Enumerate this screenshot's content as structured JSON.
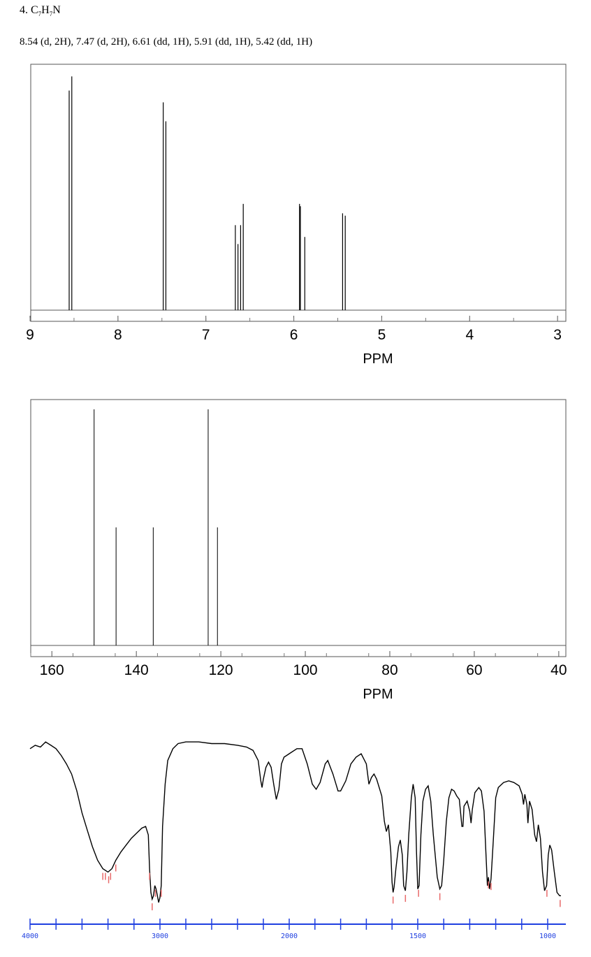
{
  "header": {
    "number": "4.",
    "formula_c": "C",
    "formula_c_sub": "7",
    "formula_h": "H",
    "formula_h_sub": "7",
    "formula_n": "N",
    "peak_list": "8.54 (d, 2H), 7.47 (d, 2H), 6.61 (dd, 1H), 5.91 (dd, 1H), 5.42 (dd, 1H)"
  },
  "chart_data": [
    {
      "type": "line",
      "name": "1H NMR",
      "xlabel": "PPM",
      "xlim": [
        9,
        2
      ],
      "x_ticks": [
        "9",
        "8",
        "7",
        "6",
        "5",
        "4",
        "3",
        "2"
      ],
      "peaks": [
        {
          "ppm": 8.555,
          "height": 0.93
        },
        {
          "ppm": 8.525,
          "height": 0.99
        },
        {
          "ppm": 7.485,
          "height": 0.88
        },
        {
          "ppm": 7.455,
          "height": 0.8
        },
        {
          "ppm": 6.665,
          "height": 0.36
        },
        {
          "ppm": 6.635,
          "height": 0.28
        },
        {
          "ppm": 6.605,
          "height": 0.36
        },
        {
          "ppm": 6.575,
          "height": 0.45
        },
        {
          "ppm": 5.935,
          "height": 0.45
        },
        {
          "ppm": 5.925,
          "height": 0.44
        },
        {
          "ppm": 5.875,
          "height": 0.31
        },
        {
          "ppm": 5.445,
          "height": 0.41
        },
        {
          "ppm": 5.415,
          "height": 0.4
        }
      ]
    },
    {
      "type": "bar",
      "name": "13C NMR",
      "xlabel": "PPM",
      "xlim": [
        165,
        37
      ],
      "x_ticks": [
        "160",
        "140",
        "120",
        "100",
        "80",
        "60",
        "40"
      ],
      "peaks": [
        {
          "ppm": 150.0,
          "height": 1.0
        },
        {
          "ppm": 144.8,
          "height": 0.5
        },
        {
          "ppm": 136.0,
          "height": 0.5
        },
        {
          "ppm": 123.0,
          "height": 1.0
        },
        {
          "ppm": 120.8,
          "height": 0.5
        }
      ]
    },
    {
      "type": "line",
      "name": "IR",
      "xlim": [
        4000,
        950
      ],
      "x_ticks": [
        "4000",
        "3000",
        "2000",
        "1500",
        "1000"
      ],
      "points": [
        [
          4000,
          0.91
        ],
        [
          3960,
          0.93
        ],
        [
          3920,
          0.92
        ],
        [
          3880,
          0.95
        ],
        [
          3840,
          0.93
        ],
        [
          3800,
          0.91
        ],
        [
          3760,
          0.87
        ],
        [
          3720,
          0.82
        ],
        [
          3680,
          0.76
        ],
        [
          3640,
          0.66
        ],
        [
          3600,
          0.53
        ],
        [
          3560,
          0.43
        ],
        [
          3520,
          0.33
        ],
        [
          3480,
          0.25
        ],
        [
          3440,
          0.2
        ],
        [
          3400,
          0.18
        ],
        [
          3370,
          0.2
        ],
        [
          3340,
          0.25
        ],
        [
          3300,
          0.3
        ],
        [
          3260,
          0.34
        ],
        [
          3220,
          0.38
        ],
        [
          3180,
          0.41
        ],
        [
          3140,
          0.44
        ],
        [
          3110,
          0.45
        ],
        [
          3090,
          0.4
        ],
        [
          3080,
          0.2
        ],
        [
          3070,
          0.06
        ],
        [
          3060,
          0.02
        ],
        [
          3050,
          0.04
        ],
        [
          3040,
          0.1
        ],
        [
          3030,
          0.08
        ],
        [
          3020,
          0.04
        ],
        [
          3010,
          0.0
        ],
        [
          3000,
          0.03
        ],
        [
          2990,
          0.1
        ],
        [
          2980,
          0.45
        ],
        [
          2960,
          0.7
        ],
        [
          2940,
          0.84
        ],
        [
          2900,
          0.91
        ],
        [
          2860,
          0.94
        ],
        [
          2800,
          0.95
        ],
        [
          2700,
          0.95
        ],
        [
          2600,
          0.94
        ],
        [
          2500,
          0.94
        ],
        [
          2400,
          0.93
        ],
        [
          2330,
          0.92
        ],
        [
          2280,
          0.9
        ],
        [
          2240,
          0.84
        ],
        [
          2220,
          0.72
        ],
        [
          2210,
          0.68
        ],
        [
          2200,
          0.73
        ],
        [
          2180,
          0.8
        ],
        [
          2160,
          0.83
        ],
        [
          2140,
          0.8
        ],
        [
          2120,
          0.7
        ],
        [
          2100,
          0.61
        ],
        [
          2080,
          0.67
        ],
        [
          2060,
          0.82
        ],
        [
          2040,
          0.86
        ],
        [
          2020,
          0.87
        ],
        [
          2000,
          0.88
        ],
        [
          1970,
          0.91
        ],
        [
          1950,
          0.91
        ],
        [
          1930,
          0.82
        ],
        [
          1910,
          0.7
        ],
        [
          1895,
          0.67
        ],
        [
          1880,
          0.71
        ],
        [
          1860,
          0.82
        ],
        [
          1850,
          0.84
        ],
        [
          1830,
          0.76
        ],
        [
          1810,
          0.66
        ],
        [
          1800,
          0.66
        ],
        [
          1780,
          0.72
        ],
        [
          1760,
          0.82
        ],
        [
          1740,
          0.86
        ],
        [
          1720,
          0.88
        ],
        [
          1700,
          0.82
        ],
        [
          1690,
          0.7
        ],
        [
          1680,
          0.74
        ],
        [
          1670,
          0.76
        ],
        [
          1660,
          0.73
        ],
        [
          1640,
          0.63
        ],
        [
          1630,
          0.48
        ],
        [
          1622,
          0.42
        ],
        [
          1614,
          0.46
        ],
        [
          1605,
          0.3
        ],
        [
          1600,
          0.12
        ],
        [
          1596,
          0.06
        ],
        [
          1592,
          0.09
        ],
        [
          1585,
          0.2
        ],
        [
          1575,
          0.33
        ],
        [
          1568,
          0.37
        ],
        [
          1560,
          0.28
        ],
        [
          1555,
          0.1
        ],
        [
          1548,
          0.07
        ],
        [
          1542,
          0.18
        ],
        [
          1535,
          0.4
        ],
        [
          1525,
          0.62
        ],
        [
          1518,
          0.7
        ],
        [
          1510,
          0.62
        ],
        [
          1505,
          0.3
        ],
        [
          1500,
          0.08
        ],
        [
          1495,
          0.1
        ],
        [
          1488,
          0.4
        ],
        [
          1480,
          0.6
        ],
        [
          1470,
          0.67
        ],
        [
          1460,
          0.69
        ],
        [
          1450,
          0.6
        ],
        [
          1440,
          0.4
        ],
        [
          1425,
          0.15
        ],
        [
          1415,
          0.08
        ],
        [
          1408,
          0.1
        ],
        [
          1400,
          0.25
        ],
        [
          1390,
          0.48
        ],
        [
          1380,
          0.62
        ],
        [
          1370,
          0.67
        ],
        [
          1360,
          0.66
        ],
        [
          1350,
          0.63
        ],
        [
          1340,
          0.61
        ],
        [
          1330,
          0.45
        ],
        [
          1326,
          0.45
        ],
        [
          1322,
          0.57
        ],
        [
          1310,
          0.6
        ],
        [
          1300,
          0.54
        ],
        [
          1295,
          0.47
        ],
        [
          1290,
          0.55
        ],
        [
          1280,
          0.65
        ],
        [
          1265,
          0.68
        ],
        [
          1255,
          0.66
        ],
        [
          1245,
          0.54
        ],
        [
          1238,
          0.3
        ],
        [
          1232,
          0.1
        ],
        [
          1228,
          0.15
        ],
        [
          1224,
          0.08
        ],
        [
          1218,
          0.14
        ],
        [
          1210,
          0.35
        ],
        [
          1200,
          0.62
        ],
        [
          1190,
          0.68
        ],
        [
          1170,
          0.71
        ],
        [
          1150,
          0.72
        ],
        [
          1130,
          0.71
        ],
        [
          1110,
          0.69
        ],
        [
          1098,
          0.64
        ],
        [
          1093,
          0.58
        ],
        [
          1088,
          0.64
        ],
        [
          1080,
          0.58
        ],
        [
          1076,
          0.47
        ],
        [
          1070,
          0.6
        ],
        [
          1060,
          0.55
        ],
        [
          1050,
          0.4
        ],
        [
          1043,
          0.36
        ],
        [
          1036,
          0.46
        ],
        [
          1028,
          0.38
        ],
        [
          1020,
          0.18
        ],
        [
          1012,
          0.07
        ],
        [
          1004,
          0.1
        ],
        [
          998,
          0.28
        ],
        [
          992,
          0.34
        ],
        [
          985,
          0.31
        ],
        [
          975,
          0.18
        ],
        [
          965,
          0.06
        ],
        [
          955,
          0.04
        ],
        [
          950,
          0.04
        ]
      ],
      "markers": [
        3440,
        3420,
        3395,
        3380,
        3340,
        3080,
        3060,
        3035,
        2990,
        1596,
        1548,
        1497,
        1415,
        1228,
        1218,
        1003,
        953
      ]
    }
  ]
}
